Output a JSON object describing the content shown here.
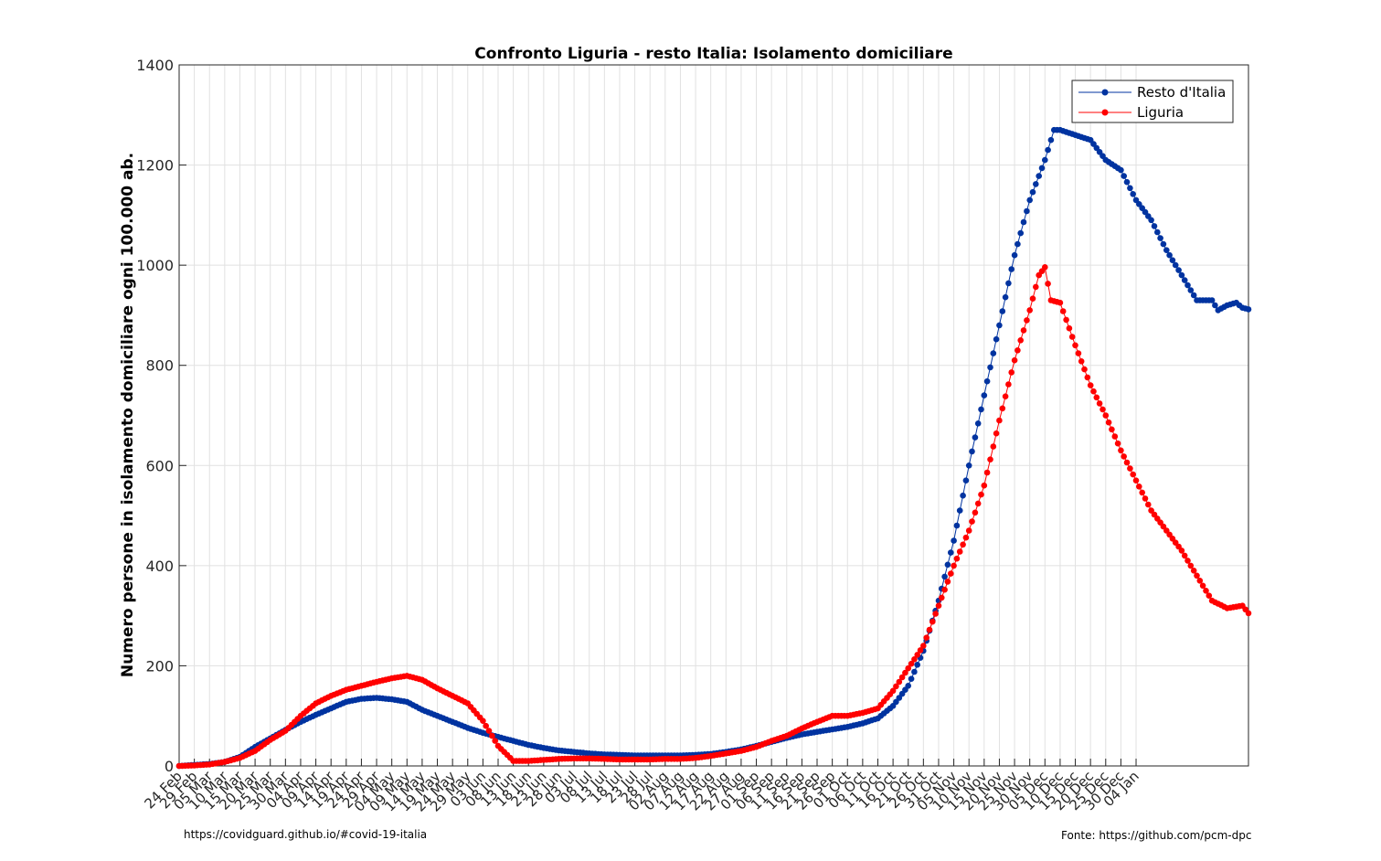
{
  "chart_data": {
    "type": "line",
    "title": "Confronto Liguria - resto Italia: Isolamento domiciliare",
    "xlabel": "",
    "ylabel": "Numero persone in isolamento domiciliare ogni 100.000 ab.",
    "ylim": [
      0,
      1400
    ],
    "yticks": [
      0,
      200,
      400,
      600,
      800,
      1000,
      1200,
      1400
    ],
    "xticks": [
      "24 Feb",
      "29 Feb",
      "05 Mar",
      "10 Mar",
      "15 Mar",
      "20 Mar",
      "25 Mar",
      "30 Mar",
      "04 Apr",
      "09 Apr",
      "14 Apr",
      "19 Apr",
      "24 Apr",
      "29 Apr",
      "04 May",
      "09 May",
      "14 May",
      "19 May",
      "24 May",
      "29 May",
      "03 Jun",
      "08 Jun",
      "13 Jun",
      "18 Jun",
      "23 Jun",
      "28 Jun",
      "03 Jul",
      "08 Jul",
      "13 Jul",
      "18 Jul",
      "23 Jul",
      "28 Jul",
      "02 Aug",
      "07 Aug",
      "12 Aug",
      "17 Aug",
      "22 Aug",
      "27 Aug",
      "01 Sep",
      "06 Sep",
      "11 Sep",
      "16 Sep",
      "21 Sep",
      "26 Sep",
      "01 Oct",
      "06 Oct",
      "11 Oct",
      "16 Oct",
      "21 Oct",
      "26 Oct",
      "31 Oct",
      "05 Nov",
      "10 Nov",
      "15 Nov",
      "20 Nov",
      "25 Nov",
      "30 Nov",
      "05 Dec",
      "10 Dec",
      "15 Dec",
      "20 Dec",
      "25 Dec",
      "30 Dec",
      "04 Jan"
    ],
    "grid": true,
    "legend_position": "top-right",
    "x_day_range": [
      0,
      315
    ],
    "series": [
      {
        "name": "Resto d'Italia",
        "color": "#0033a0",
        "points": [
          [
            0,
            0
          ],
          [
            5,
            2
          ],
          [
            10,
            4
          ],
          [
            15,
            8
          ],
          [
            20,
            18
          ],
          [
            25,
            38
          ],
          [
            30,
            55
          ],
          [
            35,
            72
          ],
          [
            40,
            88
          ],
          [
            45,
            102
          ],
          [
            50,
            115
          ],
          [
            55,
            128
          ],
          [
            60,
            134
          ],
          [
            65,
            136
          ],
          [
            70,
            133
          ],
          [
            75,
            128
          ],
          [
            80,
            112
          ],
          [
            85,
            100
          ],
          [
            90,
            88
          ],
          [
            95,
            76
          ],
          [
            100,
            66
          ],
          [
            105,
            58
          ],
          [
            110,
            50
          ],
          [
            115,
            42
          ],
          [
            120,
            36
          ],
          [
            125,
            31
          ],
          [
            130,
            28
          ],
          [
            135,
            25
          ],
          [
            140,
            23
          ],
          [
            145,
            22
          ],
          [
            150,
            21
          ],
          [
            155,
            21
          ],
          [
            160,
            21
          ],
          [
            165,
            21
          ],
          [
            170,
            22
          ],
          [
            175,
            24
          ],
          [
            180,
            28
          ],
          [
            185,
            33
          ],
          [
            190,
            40
          ],
          [
            195,
            48
          ],
          [
            200,
            56
          ],
          [
            205,
            63
          ],
          [
            210,
            68
          ],
          [
            215,
            73
          ],
          [
            220,
            78
          ],
          [
            225,
            85
          ],
          [
            230,
            95
          ],
          [
            235,
            120
          ],
          [
            240,
            160
          ],
          [
            245,
            230
          ],
          [
            250,
            330
          ],
          [
            255,
            450
          ],
          [
            260,
            600
          ],
          [
            265,
            740
          ],
          [
            270,
            880
          ],
          [
            275,
            1020
          ],
          [
            280,
            1130
          ],
          [
            285,
            1210
          ],
          [
            288,
            1270
          ],
          [
            290,
            1270
          ],
          [
            295,
            1260
          ],
          [
            300,
            1250
          ],
          [
            305,
            1210
          ],
          [
            310,
            1190
          ],
          [
            315,
            1130
          ],
          [
            320,
            1090
          ],
          [
            325,
            1030
          ],
          [
            330,
            980
          ],
          [
            335,
            930
          ],
          [
            340,
            930
          ],
          [
            342,
            910
          ],
          [
            345,
            920
          ],
          [
            348,
            925
          ],
          [
            350,
            915
          ],
          [
            352,
            912
          ]
        ]
      },
      {
        "name": "Liguria",
        "color": "#ff0000",
        "points": [
          [
            0,
            0
          ],
          [
            5,
            1
          ],
          [
            10,
            3
          ],
          [
            15,
            8
          ],
          [
            20,
            16
          ],
          [
            25,
            30
          ],
          [
            30,
            52
          ],
          [
            35,
            70
          ],
          [
            40,
            100
          ],
          [
            45,
            125
          ],
          [
            50,
            140
          ],
          [
            55,
            152
          ],
          [
            60,
            160
          ],
          [
            65,
            168
          ],
          [
            70,
            175
          ],
          [
            75,
            180
          ],
          [
            80,
            172
          ],
          [
            85,
            155
          ],
          [
            90,
            140
          ],
          [
            95,
            125
          ],
          [
            100,
            90
          ],
          [
            105,
            40
          ],
          [
            110,
            10
          ],
          [
            115,
            10
          ],
          [
            120,
            12
          ],
          [
            125,
            14
          ],
          [
            130,
            15
          ],
          [
            135,
            15
          ],
          [
            140,
            14
          ],
          [
            145,
            13
          ],
          [
            150,
            13
          ],
          [
            155,
            13
          ],
          [
            160,
            14
          ],
          [
            165,
            14
          ],
          [
            170,
            16
          ],
          [
            175,
            20
          ],
          [
            180,
            25
          ],
          [
            185,
            30
          ],
          [
            190,
            38
          ],
          [
            195,
            50
          ],
          [
            200,
            60
          ],
          [
            205,
            75
          ],
          [
            210,
            88
          ],
          [
            215,
            100
          ],
          [
            220,
            100
          ],
          [
            225,
            106
          ],
          [
            230,
            115
          ],
          [
            235,
            150
          ],
          [
            240,
            195
          ],
          [
            245,
            240
          ],
          [
            250,
            320
          ],
          [
            255,
            400
          ],
          [
            260,
            470
          ],
          [
            265,
            560
          ],
          [
            270,
            690
          ],
          [
            275,
            810
          ],
          [
            280,
            910
          ],
          [
            283,
            980
          ],
          [
            285,
            996
          ],
          [
            287,
            930
          ],
          [
            290,
            925
          ],
          [
            295,
            840
          ],
          [
            300,
            760
          ],
          [
            305,
            700
          ],
          [
            310,
            630
          ],
          [
            315,
            570
          ],
          [
            320,
            510
          ],
          [
            325,
            470
          ],
          [
            330,
            430
          ],
          [
            335,
            380
          ],
          [
            340,
            330
          ],
          [
            345,
            315
          ],
          [
            350,
            320
          ],
          [
            352,
            305
          ]
        ]
      }
    ]
  },
  "footer": {
    "left_text": "https://covidguard.github.io/#covid-19-italia",
    "right_text": "Fonte: https://github.com/pcm-dpc"
  }
}
